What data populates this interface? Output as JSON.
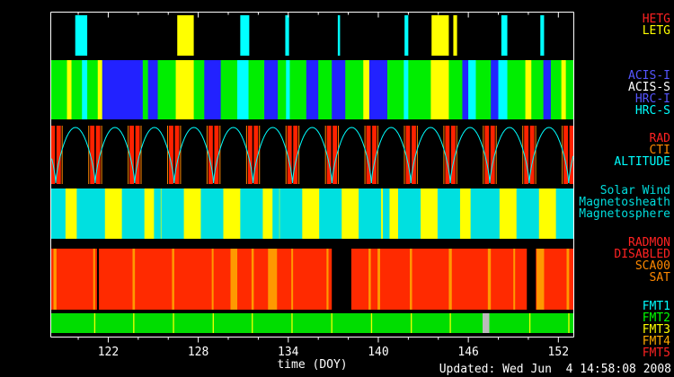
{
  "footer": {
    "updated": "Updated: Wed Jun  4 14:58:08 2008"
  },
  "chart_data": {
    "type": "timeline",
    "xlabel": "time (DOY)",
    "x_range": [
      118.2,
      153.0
    ],
    "x_ticks": [
      122,
      128,
      134,
      140,
      146,
      152
    ],
    "x_minor_tick_step": 2,
    "axis_color": "#ffffff",
    "background": "#000000",
    "orbit": {
      "period_days": 2.63,
      "first_perigee_doy": 118.5
    },
    "bands": [
      {
        "name": "gratings",
        "labels": [
          [
            "HETG",
            "#ff2222"
          ],
          [
            "LETG",
            "#ffff00"
          ]
        ],
        "background": "#000000",
        "segments": [
          [
            119.8,
            120.6,
            "#00ffff"
          ],
          [
            126.6,
            127.7,
            "#ffff00"
          ],
          [
            130.8,
            131.4,
            "#00ffff"
          ],
          [
            133.8,
            134.05,
            "#00ffff"
          ],
          [
            137.3,
            137.45,
            "#00ffff"
          ],
          [
            141.75,
            142.0,
            "#00ffff"
          ],
          [
            143.55,
            144.7,
            "#ffff00"
          ],
          [
            145.0,
            145.25,
            "#ffff00"
          ],
          [
            148.2,
            148.6,
            "#00ffff"
          ],
          [
            150.8,
            151.05,
            "#00ffff"
          ]
        ]
      },
      {
        "name": "instruments",
        "labels": [
          [
            "ACIS-I",
            "#5555ff"
          ],
          [
            "ACIS-S",
            "#ffffff"
          ],
          [
            "HRC-I",
            "#5555ff"
          ],
          [
            "HRC-S",
            "#00ffff"
          ]
        ],
        "background": "#00ee00",
        "segments": [
          [
            119.25,
            119.55,
            "#ffff00"
          ],
          [
            120.25,
            120.6,
            "#00ffff"
          ],
          [
            121.3,
            121.6,
            "#ffff00"
          ],
          [
            121.6,
            124.3,
            "#2222ff"
          ],
          [
            124.65,
            125.3,
            "#2222ff"
          ],
          [
            126.5,
            127.7,
            "#ffff00"
          ],
          [
            128.4,
            129.5,
            "#2222ff"
          ],
          [
            130.6,
            131.35,
            "#00ffff"
          ],
          [
            132.4,
            133.3,
            "#2222ff"
          ],
          [
            133.85,
            134.1,
            "#00ffff"
          ],
          [
            135.2,
            136.0,
            "#2222ff"
          ],
          [
            136.9,
            137.8,
            "#2222ff"
          ],
          [
            139.0,
            139.4,
            "#ffff00"
          ],
          [
            139.4,
            140.6,
            "#2222ff"
          ],
          [
            141.7,
            142.0,
            "#00ffff"
          ],
          [
            143.5,
            144.7,
            "#ffff00"
          ],
          [
            145.6,
            146.0,
            "#2222ff"
          ],
          [
            146.0,
            146.5,
            "#00ffff"
          ],
          [
            147.5,
            148.0,
            "#2222ff"
          ],
          [
            148.0,
            148.6,
            "#00ffff"
          ],
          [
            149.8,
            150.2,
            "#ffff00"
          ],
          [
            151.0,
            151.5,
            "#2222ff"
          ],
          [
            152.2,
            152.5,
            "#ffff00"
          ]
        ]
      },
      {
        "name": "rad-cti-altitude",
        "labels": [
          [
            "RAD",
            "#ff2222"
          ],
          [
            "CTI",
            "#ff8800"
          ],
          [
            "ALTITUDE",
            "#00ffff"
          ]
        ],
        "background": "#000000",
        "per_perigee_bars": [
          [
            -0.34,
            -0.05,
            "#ff2200"
          ],
          [
            0.05,
            0.34,
            "#ff2200"
          ],
          [
            -0.46,
            -0.4,
            "#ff8800"
          ],
          [
            0.4,
            0.46,
            "#ff8800"
          ]
        ],
        "altitude_curve": {
          "color": "#00ffff",
          "exponent": 0.7
        }
      },
      {
        "name": "solar-wind-regions",
        "labels": [
          [
            "Solar Wind",
            "#00dddd"
          ],
          [
            "Magnetosheath",
            "#00dddd"
          ],
          [
            "Magnetosphere",
            "#00dddd"
          ]
        ],
        "background": "#ffff00",
        "per_perigee_bars": [
          [
            -0.85,
            0.65,
            "#00e0e0"
          ]
        ],
        "segments": [
          [
            119.9,
            120.35,
            "#00e0e0"
          ],
          [
            125.05,
            125.5,
            "#00e0e0"
          ],
          [
            132.95,
            133.4,
            "#00e0e0"
          ],
          [
            140.3,
            140.75,
            "#00e0e0"
          ],
          [
            146.15,
            146.6,
            "#00e0e0"
          ]
        ]
      },
      {
        "name": "radmon",
        "labels": [
          [
            "RADMON",
            "#ff2222"
          ],
          [
            "DISABLED",
            "#ff2222"
          ],
          [
            "SCA00",
            "#ff8800"
          ],
          [
            "SAT",
            "#ff8800"
          ]
        ],
        "background": "#ff2a00",
        "segments": [
          [
            118.35,
            118.55,
            "#ff9900"
          ],
          [
            121.0,
            121.12,
            "#ff9900"
          ],
          [
            121.25,
            121.38,
            "#000000"
          ],
          [
            123.62,
            123.78,
            "#ff9900"
          ],
          [
            126.25,
            126.4,
            "#ff9900"
          ],
          [
            128.9,
            129.02,
            "#ff9900"
          ],
          [
            130.15,
            130.6,
            "#ff9900"
          ],
          [
            131.55,
            131.7,
            "#ff9900"
          ],
          [
            132.65,
            133.25,
            "#ff9900"
          ],
          [
            134.2,
            134.32,
            "#ff9900"
          ],
          [
            136.55,
            136.68,
            "#ff9900"
          ],
          [
            136.9,
            138.2,
            "#000000"
          ],
          [
            139.35,
            139.5,
            "#ff9900"
          ],
          [
            139.95,
            140.12,
            "#ff9900"
          ],
          [
            142.1,
            142.25,
            "#ff9900"
          ],
          [
            144.7,
            144.9,
            "#ff9900"
          ],
          [
            147.3,
            147.5,
            "#ff9900"
          ],
          [
            149.0,
            149.12,
            "#ff9900"
          ],
          [
            149.9,
            150.5,
            "#000000"
          ],
          [
            150.55,
            151.05,
            "#ff9900"
          ],
          [
            152.55,
            152.72,
            "#ff9900"
          ]
        ]
      },
      {
        "name": "telemetry-format",
        "labels": [
          [
            "FMT1",
            "#00ffff"
          ],
          [
            "FMT2",
            "#00ff00"
          ],
          [
            "FMT3",
            "#ffff00"
          ],
          [
            "FMT4",
            "#ffaa00"
          ],
          [
            "FMT5",
            "#ff2222"
          ]
        ],
        "background": "#00dd00",
        "stripes": {
          "width": 0.08,
          "color": "#eeff00",
          "centers": [
            121.1,
            123.7,
            126.35,
            129.0,
            131.6,
            134.25,
            136.9,
            139.55,
            142.2,
            144.8,
            150.1,
            152.7
          ]
        },
        "segments": [
          [
            146.95,
            147.4,
            "#bbbbbb"
          ]
        ]
      }
    ]
  }
}
